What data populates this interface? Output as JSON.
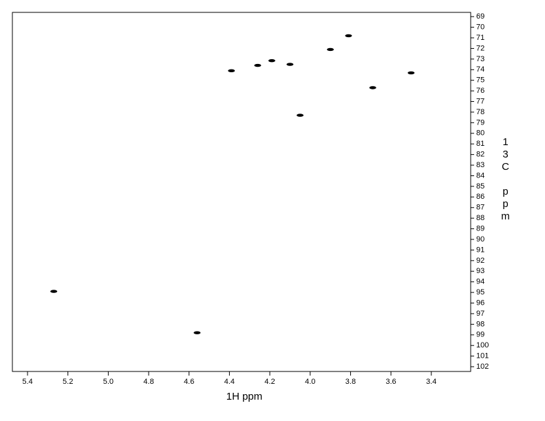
{
  "chart_data": {
    "type": "scatter",
    "x_label": "1H ppm",
    "y_label": "13C ppm",
    "xlim": [
      5.475,
      3.205
    ],
    "ylim": [
      68.6,
      102.45
    ],
    "xticks": [
      5.4,
      5.2,
      {
        "value": 5,
        "label": "5.0"
      },
      4.8,
      4.6,
      4.4,
      4.2,
      {
        "value": 4,
        "label": "4.0"
      },
      3.8,
      3.6,
      3.4
    ],
    "yticks": [
      69,
      70,
      71,
      72,
      73,
      74,
      75,
      76,
      77,
      78,
      79,
      80,
      81,
      82,
      83,
      84,
      85,
      86,
      87,
      88,
      89,
      90,
      91,
      92,
      93,
      94,
      95,
      96,
      97,
      98,
      99,
      100,
      101,
      102
    ],
    "color": "#000000",
    "x": [
      4.39,
      4.26,
      4.19,
      4.1,
      3.9,
      3.81,
      4.05,
      3.69,
      3.5,
      5.27,
      4.56
    ],
    "values": [
      74.1,
      73.6,
      73.15,
      73.5,
      72.1,
      70.8,
      78.3,
      75.7,
      74.3,
      94.9,
      98.8
    ]
  }
}
